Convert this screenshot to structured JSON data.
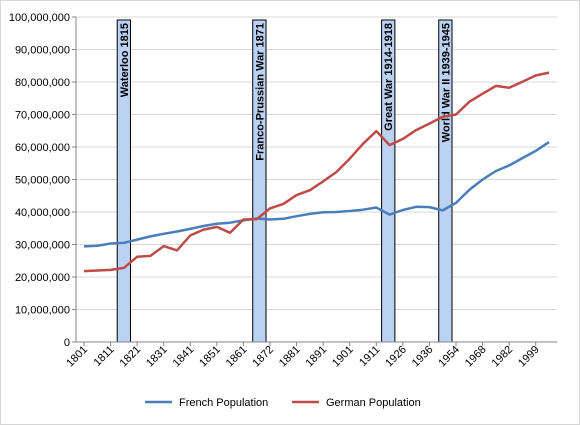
{
  "chart_data": {
    "type": "line",
    "title": "",
    "xlabel": "",
    "ylabel": "",
    "ylim": [
      0,
      100000000
    ],
    "grid": true,
    "legend_position": "bottom",
    "y_ticks": [
      "0",
      "10,000,000",
      "20,000,000",
      "30,000,000",
      "40,000,000",
      "50,000,000",
      "60,000,000",
      "70,000,000",
      "80,000,000",
      "90,000,000",
      "100,000,000"
    ],
    "y_tick_values": [
      0,
      10000000,
      20000000,
      30000000,
      40000000,
      50000000,
      60000000,
      70000000,
      80000000,
      90000000,
      100000000
    ],
    "x_tick_labels": [
      "1801",
      "1811",
      "1821",
      "1831",
      "1841",
      "1851",
      "1861",
      "1872",
      "1881",
      "1891",
      "1901",
      "1911",
      "1926",
      "1936",
      "1954",
      "1968",
      "1982",
      "1999"
    ],
    "x_tick_indices": [
      0,
      2,
      4,
      6,
      8,
      10,
      12,
      14,
      16,
      18,
      20,
      22,
      24,
      26,
      28,
      30,
      32,
      34
    ],
    "x": [
      "1801",
      "1806",
      "1811",
      "1816",
      "1821",
      "1826",
      "1831",
      "1836",
      "1841",
      "1846",
      "1851",
      "1856",
      "1861",
      "1866",
      "1872",
      "1876",
      "1881",
      "1886",
      "1891",
      "1896",
      "1901",
      "1906",
      "1911",
      "1921",
      "1926",
      "1931",
      "1936",
      "1946",
      "1954",
      "1962",
      "1968",
      "1975",
      "1982",
      "1990",
      "1999",
      "2005"
    ],
    "series": [
      {
        "name": "French Population",
        "color": "#4a7ebb",
        "values": [
          29400000,
          29600000,
          30300000,
          30500000,
          31500000,
          32500000,
          33300000,
          34000000,
          34800000,
          35700000,
          36400000,
          36700000,
          37400000,
          38000000,
          37700000,
          37900000,
          38700000,
          39400000,
          39900000,
          40000000,
          40300000,
          40700000,
          41400000,
          39200000,
          40600000,
          41600000,
          41500000,
          40500000,
          42800000,
          46800000,
          50000000,
          52600000,
          54300000,
          56600000,
          58800000,
          61500000
        ]
      },
      {
        "name": "German Population",
        "color": "#be4b48",
        "values": [
          21800000,
          22000000,
          22200000,
          22800000,
          26200000,
          26500000,
          29500000,
          28200000,
          32800000,
          34600000,
          35400000,
          33600000,
          37700000,
          37800000,
          41100000,
          42500000,
          45200000,
          46700000,
          49400000,
          52300000,
          56400000,
          61000000,
          64900000,
          60600000,
          62500000,
          65200000,
          67200000,
          69300000,
          70000000,
          73900000,
          76400000,
          78800000,
          78200000,
          80100000,
          82000000,
          82900000
        ]
      }
    ],
    "annotations": [
      {
        "label": "Waterloo  1815",
        "x_start_index": 2.5,
        "x_end_index": 3.5
      },
      {
        "label": "Franco-Prussian  War 1871",
        "x_start_index": 12.7,
        "x_end_index": 13.7
      },
      {
        "label": "Great  War 1914-1918",
        "x_start_index": 22.4,
        "x_end_index": 23.4
      },
      {
        "label": "World War II 1939-1945",
        "x_start_index": 26.7,
        "x_end_index": 27.7
      }
    ]
  }
}
